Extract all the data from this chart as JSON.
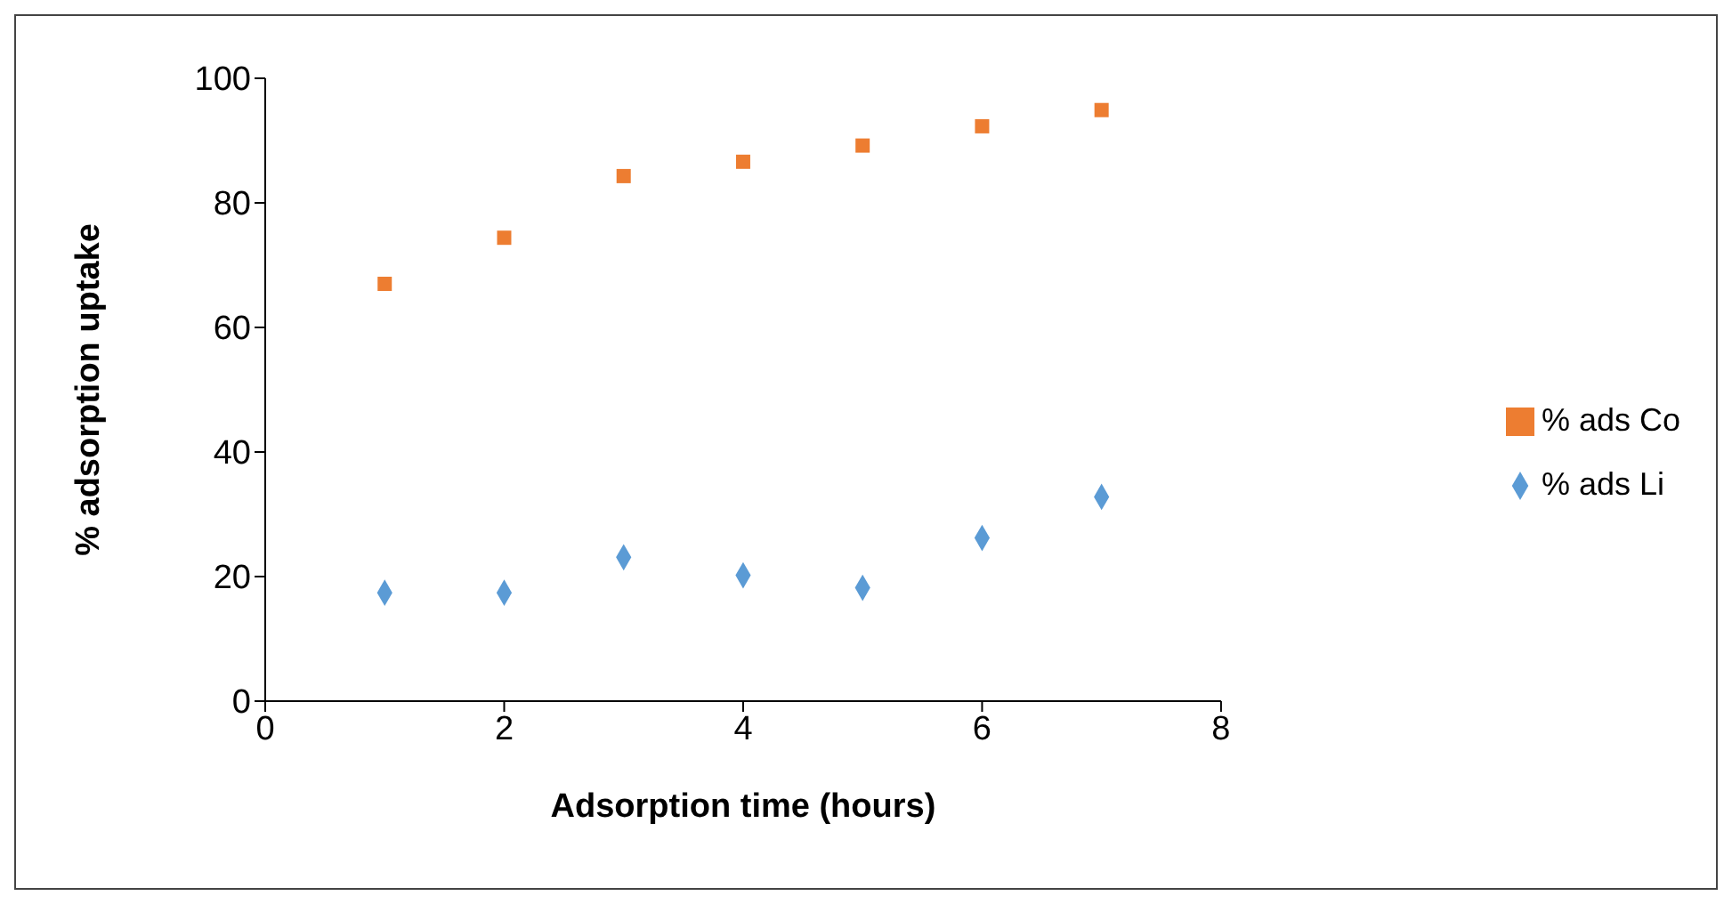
{
  "chart_data": {
    "type": "scatter",
    "xlabel": "Adsorption time (hours)",
    "ylabel": "% adsorption uptake",
    "x": [
      1,
      2,
      3,
      4,
      5,
      6,
      7
    ],
    "series": [
      {
        "name": "% ads Li",
        "color": "#5b9bd5",
        "marker": "diamond",
        "values": [
          17.4,
          17.4,
          23.1,
          20.2,
          18.2,
          26.2,
          32.8
        ]
      },
      {
        "name": "% ads Co",
        "color": "#ed7d31",
        "marker": "square",
        "values": [
          67,
          74.4,
          84.3,
          86.6,
          89.2,
          92.3,
          94.9
        ]
      }
    ],
    "xlim": [
      0,
      8
    ],
    "xticks": [
      0,
      2,
      4,
      6,
      8
    ],
    "ylim": [
      0,
      100
    ],
    "yticks": [
      0,
      20,
      40,
      60,
      80,
      100
    ],
    "grid": false,
    "legend": "right"
  }
}
